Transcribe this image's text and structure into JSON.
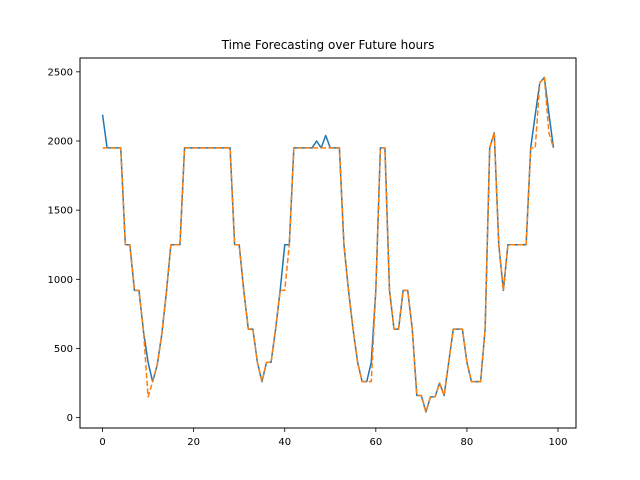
{
  "chart_data": {
    "type": "line",
    "title": "Time Forecasting over Future hours",
    "xlabel": "",
    "ylabel": "",
    "xlim": [
      -4.95,
      103.95
    ],
    "ylim": [
      -75,
      2600
    ],
    "xticks": [
      0,
      20,
      40,
      60,
      80,
      100
    ],
    "yticks": [
      0,
      500,
      1000,
      1500,
      2000,
      2500
    ],
    "grid": false,
    "legend": "none",
    "series": [
      {
        "color": "#1f77b4",
        "style": "solid",
        "values": [
          2190,
          1950,
          1950,
          1950,
          1950,
          1250,
          1250,
          920,
          920,
          620,
          400,
          260,
          380,
          600,
          900,
          1250,
          1250,
          1250,
          1950,
          1950,
          1950,
          1950,
          1950,
          1950,
          1950,
          1950,
          1950,
          1950,
          1950,
          1250,
          1250,
          920,
          640,
          640,
          400,
          260,
          400,
          400,
          640,
          920,
          1250,
          1250,
          1950,
          1950,
          1950,
          1950,
          1950,
          2000,
          1950,
          2040,
          1950,
          1950,
          1950,
          1250,
          920,
          640,
          400,
          260,
          260,
          400,
          920,
          1950,
          1950,
          920,
          640,
          640,
          920,
          920,
          640,
          160,
          160,
          40,
          150,
          150,
          250,
          160,
          400,
          640,
          640,
          640,
          400,
          260,
          260,
          260,
          640,
          1950,
          2060,
          1250,
          920,
          1250,
          1250,
          1250,
          1250,
          1250,
          1950,
          2190,
          2420,
          2460,
          2200,
          1950
        ]
      },
      {
        "color": "#ff7f0e",
        "style": "dashed",
        "values": [
          1950,
          1950,
          1950,
          1950,
          1950,
          1250,
          1250,
          920,
          920,
          620,
          150,
          260,
          380,
          600,
          900,
          1250,
          1250,
          1250,
          1950,
          1950,
          1950,
          1950,
          1950,
          1950,
          1950,
          1950,
          1950,
          1950,
          1950,
          1250,
          1250,
          920,
          640,
          640,
          400,
          260,
          400,
          400,
          640,
          920,
          920,
          1250,
          1950,
          1950,
          1950,
          1950,
          1950,
          1950,
          1950,
          1950,
          1950,
          1950,
          1950,
          1250,
          920,
          640,
          400,
          260,
          260,
          260,
          920,
          1950,
          1950,
          920,
          640,
          640,
          920,
          920,
          640,
          160,
          160,
          40,
          150,
          150,
          250,
          160,
          400,
          640,
          640,
          640,
          400,
          260,
          260,
          260,
          640,
          1950,
          2060,
          1250,
          920,
          1250,
          1250,
          1250,
          1250,
          1250,
          1950,
          1950,
          2420,
          2460,
          2060,
          1950
        ]
      }
    ]
  }
}
